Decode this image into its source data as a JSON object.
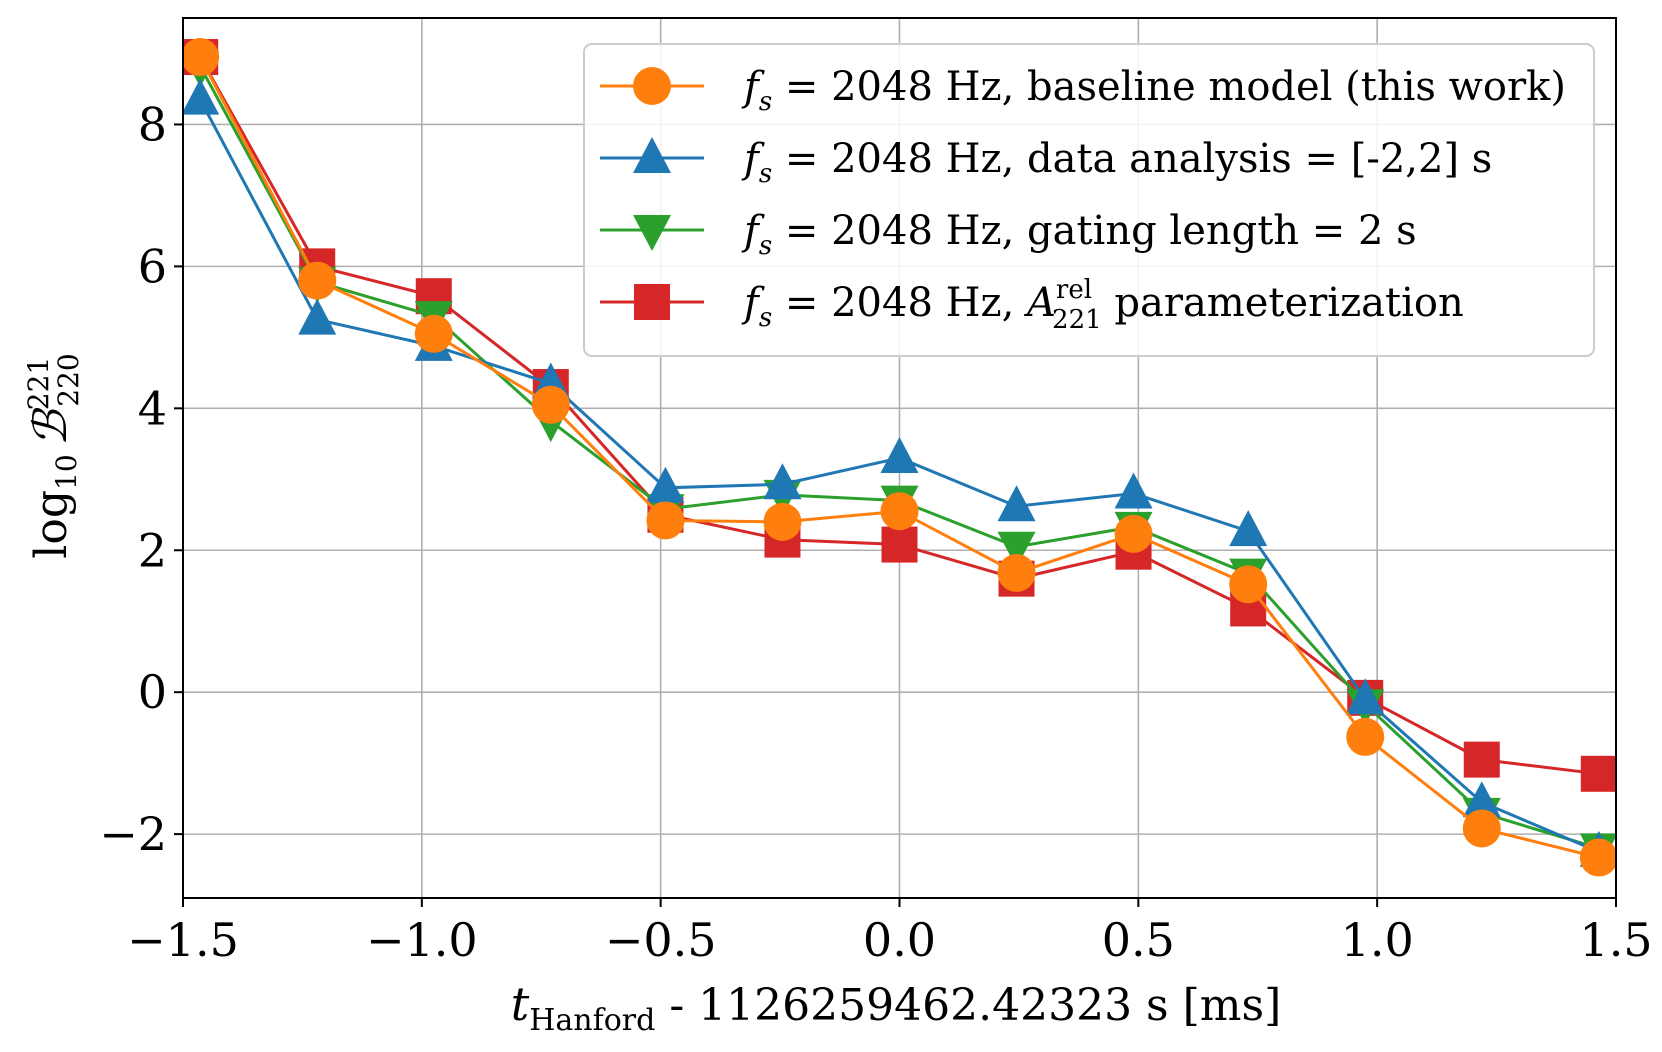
{
  "chart_data": {
    "type": "line",
    "title": "",
    "xlabel": {
      "var": "t",
      "sub": "Hanford",
      "rest": " - 1126259462.42323 s [ms]"
    },
    "ylabel": {
      "prefix": "log",
      "prefix_sub": "10",
      "sym": "ℬ",
      "sup": "221",
      "sub": "220"
    },
    "xlim": [
      -1.5,
      1.5
    ],
    "ylim": [
      -2.9,
      9.5
    ],
    "xticks": [
      -1.5,
      -1.0,
      -0.5,
      0.0,
      0.5,
      1.0,
      1.5
    ],
    "xtick_labels": [
      "−1.5",
      "−1.0",
      "−0.5",
      "0.0",
      "0.5",
      "1.0",
      "1.5"
    ],
    "yticks": [
      -2,
      0,
      2,
      4,
      6,
      8
    ],
    "ytick_labels": [
      "−2",
      "0",
      "2",
      "4",
      "6",
      "8"
    ],
    "grid": true,
    "legend_position": "top-right",
    "x": [
      -1.464,
      -1.219,
      -0.975,
      -0.73,
      -0.49,
      -0.245,
      0.0,
      0.245,
      0.49,
      0.73,
      0.975,
      1.219,
      1.464
    ],
    "series": [
      {
        "name": "fs = 2048 Hz, A221rel parameterization",
        "legend": {
          "var": "f",
          "var_sub": "s",
          "main": " = 2048 Hz, ",
          "sym": "A",
          "sym_sup": "rel",
          "sym_sub": "221",
          "tail": " parameterization"
        },
        "color": "#d62728",
        "marker": "square",
        "values": [
          8.95,
          6.0,
          5.58,
          4.3,
          2.5,
          2.15,
          2.08,
          1.6,
          1.98,
          1.18,
          -0.08,
          -0.95,
          -1.15
        ]
      },
      {
        "name": "fs = 2048 Hz, gating length = 2 s",
        "legend": {
          "var": "f",
          "var_sub": "s",
          "main": " = 2048 Hz, gating length = 2 s"
        },
        "color": "#2ca02c",
        "marker": "triangle-down",
        "values": [
          8.82,
          5.78,
          5.3,
          3.82,
          2.58,
          2.78,
          2.7,
          2.05,
          2.33,
          1.67,
          -0.17,
          -1.7,
          -2.2
        ]
      },
      {
        "name": "fs = 2048 Hz, data analysis = [-2,2] s",
        "legend": {
          "var": "f",
          "var_sub": "s",
          "main": " = 2048 Hz, data analysis = [-2,2] s"
        },
        "color": "#1f77b4",
        "marker": "triangle-up",
        "values": [
          8.35,
          5.25,
          4.88,
          4.35,
          2.88,
          2.93,
          3.3,
          2.62,
          2.8,
          2.27,
          -0.1,
          -1.55,
          -2.25
        ]
      },
      {
        "name": "fs = 2048 Hz, baseline model (this work)",
        "legend": {
          "var": "f",
          "var_sub": "s",
          "main": " = 2048 Hz, baseline model (this work)"
        },
        "color": "#ff7f0e",
        "marker": "circle",
        "values": [
          8.95,
          5.8,
          5.05,
          4.05,
          2.42,
          2.4,
          2.55,
          1.68,
          2.23,
          1.52,
          -0.63,
          -1.92,
          -2.33
        ]
      }
    ],
    "legend_order": [
      3,
      2,
      1,
      0
    ]
  }
}
